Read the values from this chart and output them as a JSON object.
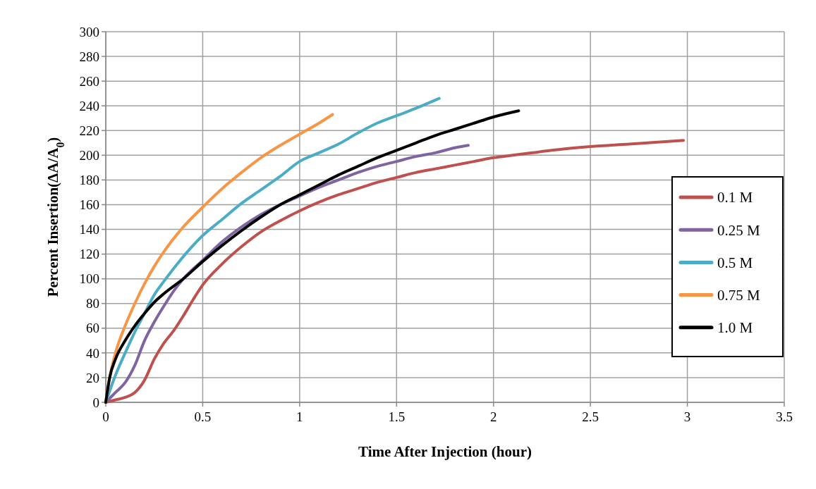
{
  "chart_data": {
    "type": "line",
    "xlabel": "Time After Injection (hour)",
    "ylabel": "Percent Insertion(ΔA/A$_{0}$)",
    "xlim": [
      0,
      3.5
    ],
    "xticks": [
      0,
      0.5,
      1,
      1.5,
      2,
      2.5,
      3,
      3.5
    ],
    "ylim": [
      0,
      300
    ],
    "yticks": [
      0,
      20,
      40,
      60,
      80,
      100,
      120,
      140,
      160,
      180,
      200,
      220,
      240,
      260,
      280,
      300
    ],
    "grid": true,
    "legend": "right",
    "marker": "none",
    "line_style": "solid",
    "series": [
      {
        "name": "0.1 M",
        "color": "#c0504d",
        "x": [
          0,
          0.05,
          0.1,
          0.15,
          0.2,
          0.25,
          0.3,
          0.35,
          0.4,
          0.45,
          0.5,
          0.6,
          0.7,
          0.8,
          0.9,
          1.0,
          1.1,
          1.2,
          1.3,
          1.4,
          1.5,
          1.6,
          1.7,
          1.8,
          1.9,
          2.0,
          2.1,
          2.2,
          2.3,
          2.5,
          2.7,
          2.98
        ],
        "values": [
          0,
          2,
          4,
          8,
          18,
          35,
          48,
          58,
          70,
          83,
          95,
          112,
          126,
          138,
          147,
          155,
          162,
          168,
          173,
          178,
          182,
          186,
          189,
          192,
          195,
          198,
          200,
          202,
          204,
          207,
          209,
          212
        ]
      },
      {
        "name": "0.25 M",
        "color": "#8064a2",
        "x": [
          0,
          0.05,
          0.1,
          0.15,
          0.2,
          0.25,
          0.3,
          0.35,
          0.4,
          0.5,
          0.6,
          0.7,
          0.8,
          0.9,
          1.0,
          1.1,
          1.2,
          1.3,
          1.4,
          1.5,
          1.6,
          1.7,
          1.8,
          1.87
        ],
        "values": [
          0,
          8,
          16,
          30,
          50,
          65,
          78,
          90,
          100,
          115,
          130,
          142,
          152,
          160,
          167,
          174,
          180,
          186,
          191,
          195,
          199,
          202,
          206,
          208
        ]
      },
      {
        "name": "0.5 M",
        "color": "#4bacc6",
        "x": [
          0,
          0.05,
          0.1,
          0.15,
          0.2,
          0.25,
          0.3,
          0.4,
          0.5,
          0.6,
          0.7,
          0.8,
          0.9,
          1.0,
          1.1,
          1.2,
          1.3,
          1.4,
          1.5,
          1.6,
          1.72
        ],
        "values": [
          0,
          22,
          40,
          57,
          72,
          87,
          98,
          118,
          135,
          148,
          161,
          172,
          183,
          195,
          202,
          209,
          218,
          226,
          232,
          238,
          246
        ]
      },
      {
        "name": "0.75 M",
        "color": "#f79646",
        "x": [
          0,
          0.02,
          0.05,
          0.1,
          0.15,
          0.2,
          0.25,
          0.3,
          0.4,
          0.5,
          0.6,
          0.7,
          0.8,
          0.9,
          1.0,
          1.1,
          1.17
        ],
        "values": [
          0,
          20,
          40,
          62,
          80,
          96,
          110,
          122,
          142,
          158,
          173,
          186,
          198,
          208,
          217,
          226,
          233
        ]
      },
      {
        "name": "1.0 M",
        "color": "#000000",
        "x": [
          0,
          0.02,
          0.05,
          0.1,
          0.15,
          0.2,
          0.25,
          0.3,
          0.4,
          0.5,
          0.6,
          0.7,
          0.8,
          0.9,
          1.0,
          1.1,
          1.2,
          1.3,
          1.4,
          1.5,
          1.6,
          1.7,
          1.8,
          1.9,
          2.0,
          2.13
        ],
        "values": [
          0,
          20,
          35,
          50,
          62,
          72,
          81,
          88,
          100,
          114,
          127,
          139,
          150,
          160,
          168,
          176,
          184,
          191,
          198,
          204,
          210,
          216,
          221,
          226,
          231,
          236
        ]
      }
    ]
  }
}
